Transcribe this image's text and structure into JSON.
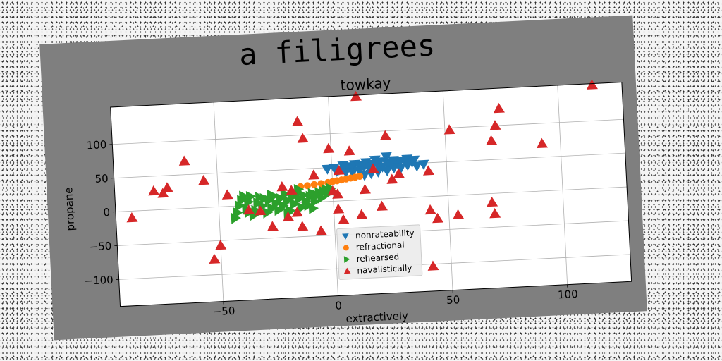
{
  "suptitle": "a filigrees",
  "chart_data": {
    "type": "scatter",
    "title": "towkay",
    "xlabel": "extractively",
    "ylabel": "propane",
    "xlim": [
      -95,
      128
    ],
    "ylim": [
      -140,
      155
    ],
    "xticks": [
      -50,
      0,
      50,
      100
    ],
    "xtick_labels": [
      "−50",
      "0",
      "50",
      "100"
    ],
    "yticks": [
      -100,
      -50,
      0,
      50,
      100
    ],
    "ytick_labels": [
      "−100",
      "−50",
      "0",
      "50",
      "100"
    ],
    "grid": true,
    "legend_position": "bottom-center",
    "series": [
      {
        "name": "nonrateability",
        "marker": "triangle-down",
        "color": "#1f77b4",
        "points": [
          [
            -2,
            48
          ],
          [
            1,
            49
          ],
          [
            3,
            46
          ],
          [
            5,
            52
          ],
          [
            7,
            50
          ],
          [
            9,
            47
          ],
          [
            10,
            53
          ],
          [
            12,
            51
          ],
          [
            14,
            49
          ],
          [
            15,
            55
          ],
          [
            16,
            48
          ],
          [
            18,
            52
          ],
          [
            20,
            50
          ],
          [
            21,
            55
          ],
          [
            22,
            47
          ],
          [
            24,
            53
          ],
          [
            25,
            50
          ],
          [
            27,
            56
          ],
          [
            28,
            52
          ],
          [
            29,
            49
          ],
          [
            30,
            55
          ],
          [
            32,
            53
          ],
          [
            33,
            57
          ],
          [
            35,
            52
          ],
          [
            36,
            55
          ],
          [
            14,
            36
          ],
          [
            17,
            38
          ],
          [
            20,
            40
          ],
          [
            24,
            41
          ],
          [
            27,
            45
          ],
          [
            30,
            44
          ],
          [
            33,
            48
          ],
          [
            37,
            46
          ],
          [
            40,
            48
          ],
          [
            2,
            44
          ],
          [
            6,
            42
          ],
          [
            9,
            41
          ],
          [
            12,
            43
          ],
          [
            24,
            62
          ],
          [
            19,
            58
          ]
        ]
      },
      {
        "name": "refractional",
        "marker": "circle",
        "color": "#ff7f0e",
        "points": [
          [
            -14,
            24
          ],
          [
            -11,
            25
          ],
          [
            -8,
            26
          ],
          [
            -5,
            27
          ],
          [
            -2,
            28
          ],
          [
            0,
            29
          ],
          [
            2,
            30
          ],
          [
            4,
            31
          ],
          [
            6,
            32
          ],
          [
            8,
            33
          ],
          [
            10,
            34
          ],
          [
            12,
            35
          ]
        ]
      },
      {
        "name": "rehearsed",
        "marker": "triangle-right",
        "color": "#2ca02c",
        "points": [
          [
            -43,
            -18
          ],
          [
            -42,
            -10
          ],
          [
            -41,
            0
          ],
          [
            -40,
            8
          ],
          [
            -39,
            14
          ],
          [
            -38,
            -5
          ],
          [
            -37,
            5
          ],
          [
            -36,
            13
          ],
          [
            -35,
            -15
          ],
          [
            -34,
            -8
          ],
          [
            -33,
            3
          ],
          [
            -32,
            11
          ],
          [
            -31,
            -2
          ],
          [
            -30,
            9
          ],
          [
            -29,
            -12
          ],
          [
            -28,
            6
          ],
          [
            -27,
            -6
          ],
          [
            -26,
            12
          ],
          [
            -25,
            1
          ],
          [
            -24,
            -9
          ],
          [
            -23,
            8
          ],
          [
            -22,
            -3
          ],
          [
            -21,
            14
          ],
          [
            -20,
            4
          ],
          [
            -19,
            -11
          ],
          [
            -18,
            10
          ],
          [
            -17,
            -1
          ],
          [
            -16,
            13
          ],
          [
            -15,
            6
          ],
          [
            -14,
            -7
          ],
          [
            -13,
            11
          ],
          [
            -12,
            2
          ],
          [
            -11,
            -4
          ],
          [
            -10,
            9
          ],
          [
            -9,
            13
          ],
          [
            -8,
            1
          ],
          [
            -7,
            10
          ],
          [
            -6,
            14
          ],
          [
            -5,
            6
          ],
          [
            -4,
            15
          ],
          [
            -3,
            18
          ],
          [
            -2,
            12
          ],
          [
            -1,
            19
          ],
          [
            -27,
            14
          ],
          [
            -37,
            -10
          ],
          [
            -15,
            20
          ],
          [
            -20,
            -14
          ],
          [
            -9,
            -9
          ]
        ]
      },
      {
        "name": "navalistically",
        "marker": "triangle-up",
        "color": "#d62728",
        "points": [
          [
            12,
            153
          ],
          [
            115,
            153
          ],
          [
            74,
            125
          ],
          [
            -14,
            120
          ],
          [
            -12,
            95
          ],
          [
            52,
            97
          ],
          [
            24,
            93
          ],
          [
            72,
            100
          ],
          [
            70,
            78
          ],
          [
            92,
            70
          ],
          [
            -1,
            78
          ],
          [
            8,
            73
          ],
          [
            -64,
            70
          ],
          [
            -56,
            40
          ],
          [
            -78,
            28
          ],
          [
            -74,
            24
          ],
          [
            -72,
            32
          ],
          [
            -8,
            40
          ],
          [
            3,
            45
          ],
          [
            -46,
            17
          ],
          [
            -22,
            25
          ],
          [
            -18,
            19
          ],
          [
            0,
            15
          ],
          [
            2,
            10
          ],
          [
            14,
            15
          ],
          [
            26,
            28
          ],
          [
            29,
            36
          ],
          [
            42,
            38
          ],
          [
            18,
            45
          ],
          [
            -88,
            -10
          ],
          [
            -37,
            -7
          ],
          [
            -32,
            -9
          ],
          [
            -20,
            -20
          ],
          [
            -16,
            -14
          ],
          [
            2,
            -12
          ],
          [
            4,
            -28
          ],
          [
            12,
            -22
          ],
          [
            21,
            -11
          ],
          [
            -27,
            -33
          ],
          [
            -14,
            -35
          ],
          [
            -6,
            -43
          ],
          [
            42,
            -20
          ],
          [
            45,
            -33
          ],
          [
            54,
            -29
          ],
          [
            69,
            -13
          ],
          [
            70,
            -30
          ],
          [
            -50,
            -57
          ],
          [
            -53,
            -77
          ],
          [
            42,
            -103
          ]
        ]
      }
    ]
  }
}
